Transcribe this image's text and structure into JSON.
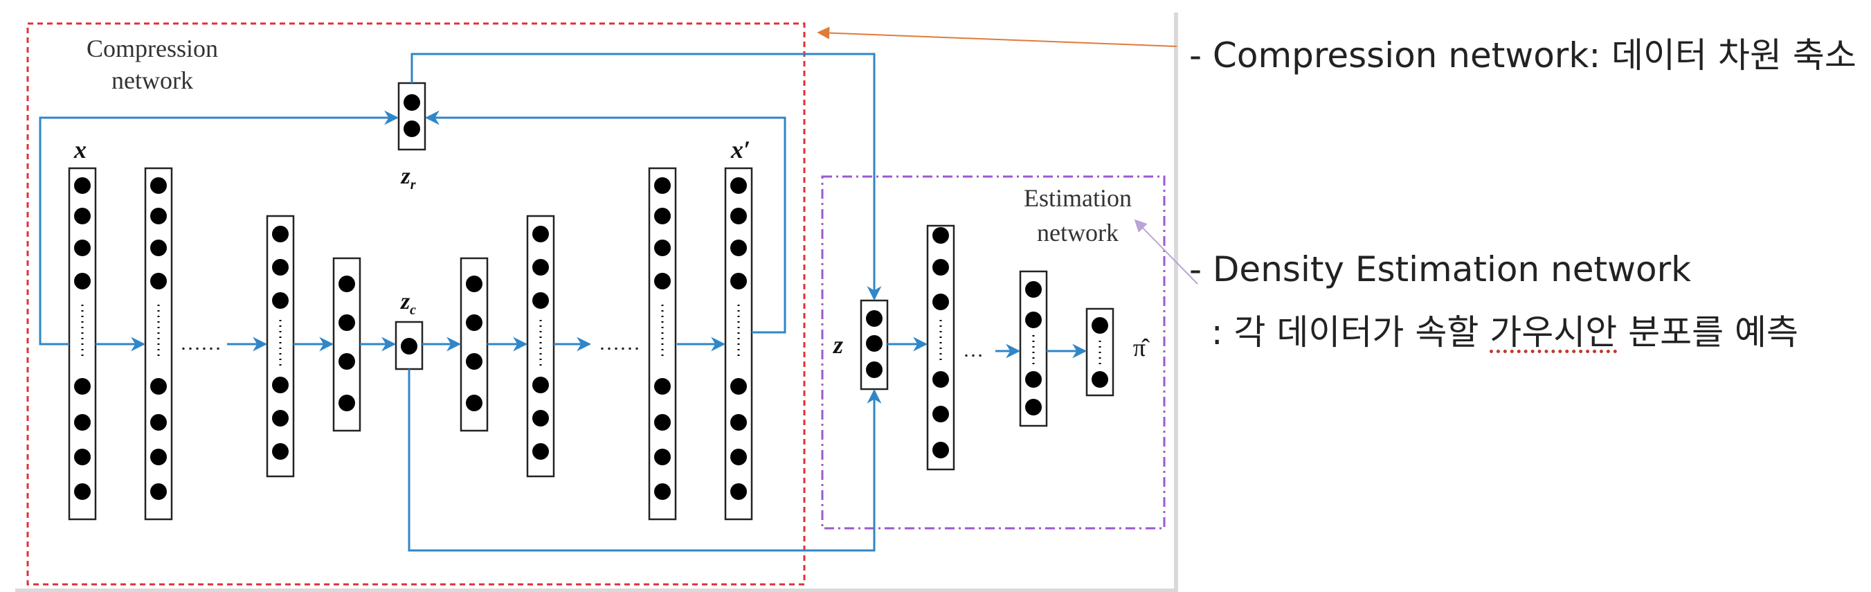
{
  "compression": {
    "title_line1": "Compression",
    "title_line2": "network"
  },
  "estimation": {
    "title_line1": "Estimation",
    "title_line2": "network"
  },
  "labels": {
    "x": "x",
    "x_prime": "x′",
    "z_r": "z",
    "z_r_sub": "r",
    "z_c": "z",
    "z_c_sub": "c",
    "z": "z",
    "pi_hat": "π̂",
    "ellipsis_long": "……",
    "ellipsis_long2": "……",
    "ellipsis_short": "…"
  },
  "annotations": {
    "compression": "- Compression network: 데이터 차원 축소",
    "density_line1": "- Density Estimation network",
    "density_line2_prefix": "  : 각 데이터가 속할 ",
    "density_line2_underlined": "가우시안",
    "density_line2_suffix": " 분포를 예측"
  },
  "colors": {
    "compression_box": "#e0303a",
    "estimation_box": "#9b59d0",
    "arrow": "#2f86c8",
    "annotation_arrow_orange": "#e07b3a",
    "annotation_arrow_purple": "#b9a3d8",
    "node": "#000000"
  }
}
